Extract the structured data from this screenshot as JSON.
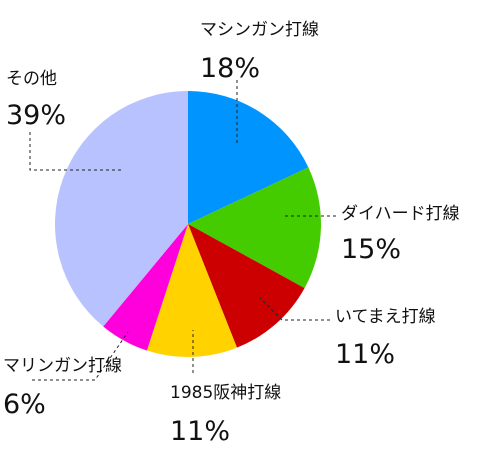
{
  "chart_data": {
    "type": "pie",
    "title": "",
    "start_angle_deg": 0,
    "direction": "clockwise",
    "slices": [
      {
        "name": "マシンガン打線",
        "value": 18,
        "label": "18%",
        "color": "#0094ff"
      },
      {
        "name": "ダイハード打線",
        "value": 15,
        "label": "15%",
        "color": "#44cc00"
      },
      {
        "name": "いてまえ打線",
        "value": 11,
        "label": "11%",
        "color": "#cc0000"
      },
      {
        "name": "1985阪神打線",
        "value": 11,
        "label": "11%",
        "color": "#ffd200"
      },
      {
        "name": "マリンガン打線",
        "value": 6,
        "label": "6%",
        "color": "#ff00dd"
      },
      {
        "name": "その他",
        "value": 39,
        "label": "39%",
        "color": "#b8c2ff"
      }
    ]
  }
}
